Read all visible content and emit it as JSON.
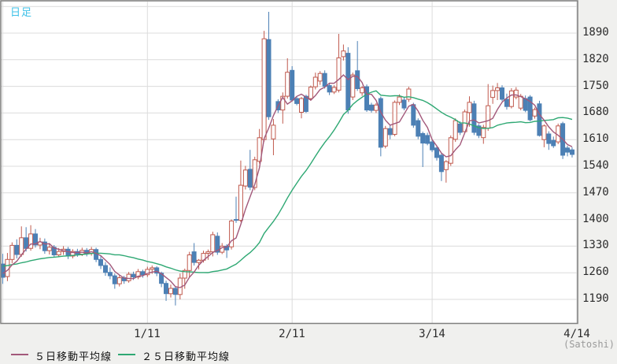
{
  "header": {
    "timeframe_label": "日足"
  },
  "legend": {
    "items": [
      {
        "label": "５日移動平均線",
        "color_key": "ma5"
      },
      {
        "label": "２５日移動平均線",
        "color_key": "ma25"
      }
    ]
  },
  "colors": {
    "up": "#c05a4e",
    "down": "#4c80b5",
    "ma5": "#a2587a",
    "ma25": "#2ea873",
    "timeframe_text": "#3ec1e8",
    "grid": "#dcdcdc",
    "border": "#7f7f7f",
    "plot_bg": "#ffffff",
    "outer_bg": "#f0f0ee",
    "text": "#2b2b2b",
    "muted_text": "#9a9a9a"
  },
  "chart_data": {
    "type": "candlestick",
    "title": "日足",
    "timeframe": "daily",
    "unit": "Satoshi",
    "unit_label": "(Satoshi)",
    "y_axis": {
      "tick_labels": [
        1890,
        1820,
        1750,
        1680,
        1610,
        1540,
        1470,
        1400,
        1330,
        1260,
        1190
      ],
      "unlabeled_top_gridline": 1960,
      "tick_step": 70
    },
    "x_axis": {
      "ticks": [
        {
          "label": "1/11",
          "candle_index": 31
        },
        {
          "label": "2/11",
          "candle_index": 62
        },
        {
          "label": "3/14",
          "candle_index": 92
        },
        {
          "label": "4/14",
          "candle_index": 123
        }
      ],
      "leading_unlabeled_gridline_index": 0
    },
    "series": [
      {
        "name": "ローソク足",
        "type": "candlestick"
      },
      {
        "name": "５日移動平均線",
        "type": "line",
        "window": 5
      },
      {
        "name": "２５日移動平均線",
        "type": "line",
        "window": 25
      }
    ],
    "ma5_seed_closes": [
      1255,
      1258,
      1262,
      1268
    ],
    "ma25_seed_closes": [
      1262,
      1265,
      1268,
      1270,
      1272,
      1274,
      1276,
      1278,
      1280,
      1282,
      1284,
      1285,
      1286,
      1286,
      1285,
      1284,
      1283,
      1282,
      1281,
      1280,
      1280,
      1281,
      1282,
      1283
    ],
    "candles_ohlc": [
      [
        1283,
        1310,
        1231,
        1248
      ],
      [
        1250,
        1312,
        1238,
        1295
      ],
      [
        1295,
        1340,
        1285,
        1332
      ],
      [
        1332,
        1348,
        1298,
        1308
      ],
      [
        1308,
        1382,
        1302,
        1352
      ],
      [
        1352,
        1380,
        1316,
        1324
      ],
      [
        1324,
        1385,
        1318,
        1362
      ],
      [
        1362,
        1375,
        1326,
        1333
      ],
      [
        1333,
        1352,
        1322,
        1341
      ],
      [
        1341,
        1350,
        1310,
        1318
      ],
      [
        1318,
        1338,
        1308,
        1327
      ],
      [
        1327,
        1333,
        1300,
        1307
      ],
      [
        1307,
        1325,
        1301,
        1316
      ],
      [
        1316,
        1330,
        1307,
        1322
      ],
      [
        1322,
        1328,
        1296,
        1304
      ],
      [
        1304,
        1322,
        1298,
        1316
      ],
      [
        1316,
        1323,
        1302,
        1309
      ],
      [
        1309,
        1326,
        1304,
        1319
      ],
      [
        1319,
        1325,
        1303,
        1311
      ],
      [
        1311,
        1328,
        1305,
        1321
      ],
      [
        1321,
        1326,
        1288,
        1295
      ],
      [
        1295,
        1306,
        1270,
        1279
      ],
      [
        1279,
        1288,
        1252,
        1261
      ],
      [
        1261,
        1274,
        1243,
        1252
      ],
      [
        1252,
        1258,
        1218,
        1231
      ],
      [
        1231,
        1254,
        1224,
        1247
      ],
      [
        1247,
        1252,
        1231,
        1239
      ],
      [
        1239,
        1262,
        1234,
        1256
      ],
      [
        1256,
        1263,
        1241,
        1249
      ],
      [
        1249,
        1270,
        1243,
        1263
      ],
      [
        1263,
        1268,
        1247,
        1255
      ],
      [
        1255,
        1276,
        1249,
        1269
      ],
      [
        1269,
        1279,
        1257,
        1273
      ],
      [
        1273,
        1277,
        1251,
        1259
      ],
      [
        1259,
        1263,
        1222,
        1232
      ],
      [
        1232,
        1239,
        1186,
        1205
      ],
      [
        1205,
        1229,
        1195,
        1219
      ],
      [
        1219,
        1223,
        1174,
        1203
      ],
      [
        1203,
        1258,
        1190,
        1246
      ],
      [
        1246,
        1271,
        1218,
        1266
      ],
      [
        1266,
        1315,
        1249,
        1307
      ],
      [
        1315,
        1338,
        1279,
        1287
      ],
      [
        1287,
        1296,
        1269,
        1293
      ],
      [
        1293,
        1318,
        1287,
        1311
      ],
      [
        1311,
        1321,
        1294,
        1315
      ],
      [
        1315,
        1368,
        1303,
        1360
      ],
      [
        1356,
        1366,
        1307,
        1314
      ],
      [
        1314,
        1338,
        1309,
        1330
      ],
      [
        1330,
        1335,
        1299,
        1320
      ],
      [
        1328,
        1400,
        1321,
        1396
      ],
      [
        1400,
        1460,
        1391,
        1398
      ],
      [
        1398,
        1555,
        1393,
        1490
      ],
      [
        1488,
        1541,
        1479,
        1530
      ],
      [
        1532,
        1583,
        1477,
        1485
      ],
      [
        1484,
        1565,
        1477,
        1557
      ],
      [
        1553,
        1638,
        1547,
        1615
      ],
      [
        1610,
        1896,
        1604,
        1875
      ],
      [
        1873,
        1946,
        1662,
        1670
      ],
      [
        1612,
        1664,
        1569,
        1648
      ],
      [
        1710,
        1716,
        1680,
        1688
      ],
      [
        1688,
        1734,
        1652,
        1724
      ],
      [
        1724,
        1824,
        1718,
        1787
      ],
      [
        1792,
        1803,
        1710,
        1714
      ],
      [
        1718,
        1724,
        1700,
        1705
      ],
      [
        1682,
        1722,
        1666,
        1718
      ],
      [
        1724,
        1728,
        1680,
        1684
      ],
      [
        1718,
        1752,
        1712,
        1748
      ],
      [
        1749,
        1786,
        1742,
        1774
      ],
      [
        1764,
        1790,
        1754,
        1784
      ],
      [
        1784,
        1792,
        1744,
        1750
      ],
      [
        1752,
        1758,
        1727,
        1735
      ],
      [
        1735,
        1753,
        1730,
        1747
      ],
      [
        1740,
        1888,
        1734,
        1825
      ],
      [
        1828,
        1860,
        1818,
        1843
      ],
      [
        1837,
        1853,
        1678,
        1688
      ],
      [
        1722,
        1786,
        1714,
        1780
      ],
      [
        1791,
        1869,
        1738,
        1744
      ],
      [
        1733,
        1751,
        1725,
        1746
      ],
      [
        1749,
        1755,
        1683,
        1688
      ],
      [
        1701,
        1707,
        1681,
        1687
      ],
      [
        1687,
        1706,
        1680,
        1701
      ],
      [
        1718,
        1723,
        1566,
        1590
      ],
      [
        1593,
        1646,
        1587,
        1639
      ],
      [
        1639,
        1648,
        1611,
        1623
      ],
      [
        1624,
        1713,
        1619,
        1708
      ],
      [
        1708,
        1729,
        1701,
        1722
      ],
      [
        1714,
        1721,
        1687,
        1693
      ],
      [
        1716,
        1749,
        1709,
        1743
      ],
      [
        1702,
        1707,
        1641,
        1648
      ],
      [
        1660,
        1666,
        1611,
        1619
      ],
      [
        1626,
        1631,
        1538,
        1601
      ],
      [
        1621,
        1628,
        1595,
        1600
      ],
      [
        1604,
        1611,
        1577,
        1583
      ],
      [
        1588,
        1593,
        1555,
        1563
      ],
      [
        1569,
        1575,
        1501,
        1526
      ],
      [
        1531,
        1556,
        1497,
        1552
      ],
      [
        1548,
        1621,
        1541,
        1615
      ],
      [
        1611,
        1666,
        1604,
        1660
      ],
      [
        1651,
        1658,
        1622,
        1629
      ],
      [
        1631,
        1689,
        1626,
        1683
      ],
      [
        1681,
        1724,
        1644,
        1708
      ],
      [
        1704,
        1712,
        1622,
        1629
      ],
      [
        1646,
        1651,
        1614,
        1621
      ],
      [
        1615,
        1649,
        1599,
        1642
      ],
      [
        1640,
        1756,
        1633,
        1699
      ],
      [
        1721,
        1752,
        1704,
        1739
      ],
      [
        1739,
        1759,
        1714,
        1746
      ],
      [
        1746,
        1753,
        1711,
        1716
      ],
      [
        1716,
        1731,
        1689,
        1697
      ],
      [
        1697,
        1745,
        1692,
        1738
      ],
      [
        1722,
        1748,
        1716,
        1740
      ],
      [
        1693,
        1730,
        1687,
        1724
      ],
      [
        1718,
        1726,
        1682,
        1687
      ],
      [
        1722,
        1727,
        1658,
        1662
      ],
      [
        1672,
        1694,
        1665,
        1689
      ],
      [
        1704,
        1712,
        1618,
        1621
      ],
      [
        1610,
        1650,
        1590,
        1646
      ],
      [
        1625,
        1632,
        1583,
        1600
      ],
      [
        1608,
        1618,
        1588,
        1594
      ],
      [
        1604,
        1652,
        1598,
        1646
      ],
      [
        1652,
        1657,
        1559,
        1569
      ],
      [
        1588,
        1594,
        1566,
        1577
      ],
      [
        1583,
        1590,
        1563,
        1571
      ]
    ]
  }
}
